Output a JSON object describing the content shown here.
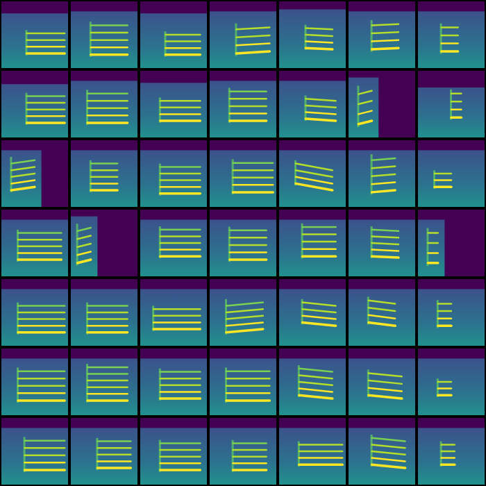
{
  "chart_data": {
    "type": "spectrogram_grid",
    "xlim": [
      0,
      1
    ],
    "ylim": [
      0,
      1
    ],
    "tick_labels": false,
    "panels": [
      [
        {
          "t": [
            0.38,
            0.95
          ],
          "base": [
            0.22,
            0.22
          ],
          "spacing": 0.1,
          "count": 4,
          "noise": [
            0,
            1,
            0.82
          ]
        },
        {
          "t": [
            0.3,
            0.85
          ],
          "base": [
            0.2,
            0.2
          ],
          "spacing": 0.11,
          "count": 5,
          "noise": [
            0,
            1,
            0.85
          ]
        },
        {
          "t": [
            0.38,
            0.9
          ],
          "base": [
            0.2,
            0.2
          ],
          "spacing": 0.1,
          "count": 4,
          "noise": [
            0,
            1,
            0.82
          ]
        },
        {
          "t": [
            0.4,
            0.9
          ],
          "base": [
            0.22,
            0.25
          ],
          "spacing": 0.12,
          "count": 4,
          "noise": [
            0,
            1,
            0.85
          ]
        },
        {
          "t": [
            0.4,
            0.8
          ],
          "base": [
            0.3,
            0.28
          ],
          "spacing": 0.1,
          "count": 4,
          "noise": [
            0,
            1,
            0.88
          ]
        },
        {
          "t": [
            0.35,
            0.75
          ],
          "base": [
            0.28,
            0.3
          ],
          "spacing": 0.12,
          "count": 4,
          "noise": [
            0,
            1,
            0.85
          ]
        },
        {
          "t": [
            0.35,
            0.6
          ],
          "base": [
            0.25,
            0.25
          ],
          "spacing": 0.12,
          "count": 4,
          "noise": [
            0,
            1,
            0.85
          ]
        }
      ],
      [
        {
          "t": [
            0.38,
            0.95
          ],
          "base": [
            0.22,
            0.22
          ],
          "spacing": 0.1,
          "count": 5,
          "noise": [
            0,
            1,
            0.8
          ]
        },
        {
          "t": [
            0.25,
            0.85
          ],
          "base": [
            0.22,
            0.22
          ],
          "spacing": 0.11,
          "count": 5,
          "noise": [
            0,
            1,
            0.85
          ]
        },
        {
          "t": [
            0.3,
            0.9
          ],
          "base": [
            0.25,
            0.25
          ],
          "spacing": 0.1,
          "count": 4,
          "noise": [
            0,
            1,
            0.82
          ]
        },
        {
          "t": [
            0.3,
            0.85
          ],
          "base": [
            0.25,
            0.25
          ],
          "spacing": 0.11,
          "count": 5,
          "noise": [
            0,
            1,
            0.85
          ]
        },
        {
          "t": [
            0.4,
            0.85
          ],
          "base": [
            0.28,
            0.25
          ],
          "spacing": 0.1,
          "count": 4,
          "noise": [
            0,
            1,
            0.85
          ]
        },
        {
          "t": [
            0.15,
            0.35
          ],
          "base": [
            0.2,
            0.25
          ],
          "spacing": 0.15,
          "count": 4,
          "noise": [
            0,
            0.45,
            0.9
          ]
        },
        {
          "t": [
            0.5,
            0.65
          ],
          "base": [
            0.3,
            0.3
          ],
          "spacing": 0.12,
          "count": 4,
          "noise": [
            0,
            1,
            0.75
          ]
        }
      ],
      [
        {
          "t": [
            0.15,
            0.5
          ],
          "base": [
            0.25,
            0.3
          ],
          "spacing": 0.1,
          "count": 5,
          "noise": [
            0,
            0.6,
            0.85
          ]
        },
        {
          "t": [
            0.3,
            0.7
          ],
          "base": [
            0.25,
            0.25
          ],
          "spacing": 0.1,
          "count": 5,
          "noise": [
            0,
            1,
            0.85
          ]
        },
        {
          "t": [
            0.3,
            0.9
          ],
          "base": [
            0.2,
            0.2
          ],
          "spacing": 0.1,
          "count": 5,
          "noise": [
            0,
            1,
            0.85
          ]
        },
        {
          "t": [
            0.35,
            0.95
          ],
          "base": [
            0.22,
            0.22
          ],
          "spacing": 0.11,
          "count": 5,
          "noise": [
            0,
            1,
            0.85
          ]
        },
        {
          "t": [
            0.25,
            0.8
          ],
          "base": [
            0.35,
            0.25
          ],
          "spacing": 0.1,
          "count": 4,
          "noise": [
            0,
            1,
            0.85
          ]
        },
        {
          "t": [
            0.35,
            0.7
          ],
          "base": [
            0.22,
            0.25
          ],
          "spacing": 0.12,
          "count": 5,
          "noise": [
            0,
            1,
            0.85
          ]
        },
        {
          "t": [
            0.25,
            0.5
          ],
          "base": [
            0.3,
            0.3
          ],
          "spacing": 0.1,
          "count": 3,
          "noise": [
            0,
            1,
            0.85
          ]
        }
      ],
      [
        {
          "t": [
            0.25,
            0.9
          ],
          "base": [
            0.25,
            0.25
          ],
          "spacing": 0.1,
          "count": 5,
          "noise": [
            0,
            1,
            0.85
          ]
        },
        {
          "t": [
            0.1,
            0.3
          ],
          "base": [
            0.2,
            0.25
          ],
          "spacing": 0.12,
          "count": 5,
          "noise": [
            0,
            0.4,
            0.9
          ]
        },
        {
          "t": [
            0.3,
            0.9
          ],
          "base": [
            0.3,
            0.3
          ],
          "spacing": 0.1,
          "count": 5,
          "noise": [
            0,
            1,
            0.85
          ]
        },
        {
          "t": [
            0.3,
            0.85
          ],
          "base": [
            0.25,
            0.25
          ],
          "spacing": 0.11,
          "count": 5,
          "noise": [
            0,
            1,
            0.85
          ]
        },
        {
          "t": [
            0.35,
            0.85
          ],
          "base": [
            0.3,
            0.3
          ],
          "spacing": 0.11,
          "count": 5,
          "noise": [
            0,
            1,
            0.85
          ]
        },
        {
          "t": [
            0.35,
            0.75
          ],
          "base": [
            0.3,
            0.28
          ],
          "spacing": 0.1,
          "count": 5,
          "noise": [
            0,
            1,
            0.85
          ]
        },
        {
          "t": [
            0.15,
            0.3
          ],
          "base": [
            0.2,
            0.2
          ],
          "spacing": 0.15,
          "count": 4,
          "noise": [
            0,
            0.4,
            0.85
          ]
        }
      ],
      [
        {
          "t": [
            0.25,
            0.95
          ],
          "base": [
            0.2,
            0.2
          ],
          "spacing": 0.1,
          "count": 5,
          "noise": [
            0,
            1,
            0.85
          ]
        },
        {
          "t": [
            0.25,
            0.85
          ],
          "base": [
            0.2,
            0.2
          ],
          "spacing": 0.1,
          "count": 5,
          "noise": [
            0,
            1,
            0.85
          ]
        },
        {
          "t": [
            0.2,
            0.9
          ],
          "base": [
            0.25,
            0.25
          ],
          "spacing": 0.1,
          "count": 4,
          "noise": [
            0,
            1,
            0.85
          ]
        },
        {
          "t": [
            0.25,
            0.8
          ],
          "base": [
            0.2,
            0.25
          ],
          "spacing": 0.1,
          "count": 5,
          "noise": [
            0,
            1,
            0.85
          ]
        },
        {
          "t": [
            0.35,
            0.85
          ],
          "base": [
            0.35,
            0.3
          ],
          "spacing": 0.1,
          "count": 4,
          "noise": [
            0,
            1,
            0.85
          ]
        },
        {
          "t": [
            0.3,
            0.7
          ],
          "base": [
            0.35,
            0.3
          ],
          "spacing": 0.11,
          "count": 4,
          "noise": [
            0,
            1,
            0.85
          ]
        },
        {
          "t": [
            0.3,
            0.5
          ],
          "base": [
            0.3,
            0.3
          ],
          "spacing": 0.11,
          "count": 4,
          "noise": [
            0,
            1,
            0.85
          ]
        }
      ],
      [
        {
          "t": [
            0.25,
            0.95
          ],
          "base": [
            0.22,
            0.22
          ],
          "spacing": 0.11,
          "count": 5,
          "noise": [
            0,
            1,
            0.85
          ]
        },
        {
          "t": [
            0.25,
            0.85
          ],
          "base": [
            0.22,
            0.22
          ],
          "spacing": 0.1,
          "count": 6,
          "noise": [
            0,
            1,
            0.85
          ]
        },
        {
          "t": [
            0.3,
            0.9
          ],
          "base": [
            0.25,
            0.25
          ],
          "spacing": 0.1,
          "count": 5,
          "noise": [
            0,
            1,
            0.85
          ]
        },
        {
          "t": [
            0.25,
            0.9
          ],
          "base": [
            0.22,
            0.22
          ],
          "spacing": 0.11,
          "count": 5,
          "noise": [
            0,
            1,
            0.85
          ]
        },
        {
          "t": [
            0.3,
            0.8
          ],
          "base": [
            0.3,
            0.25
          ],
          "spacing": 0.1,
          "count": 5,
          "noise": [
            0,
            1,
            0.85
          ]
        },
        {
          "t": [
            0.3,
            0.8
          ],
          "base": [
            0.3,
            0.25
          ],
          "spacing": 0.11,
          "count": 4,
          "noise": [
            0,
            1,
            0.85
          ]
        },
        {
          "t": [
            0.3,
            0.5
          ],
          "base": [
            0.3,
            0.3
          ],
          "spacing": 0.1,
          "count": 3,
          "noise": [
            0,
            1,
            0.85
          ]
        }
      ],
      [
        {
          "t": [
            0.35,
            0.95
          ],
          "base": [
            0.22,
            0.22
          ],
          "spacing": 0.11,
          "count": 5,
          "noise": [
            0,
            1,
            0.85
          ]
        },
        {
          "t": [
            0.4,
            0.9
          ],
          "base": [
            0.25,
            0.25
          ],
          "spacing": 0.1,
          "count": 5,
          "noise": [
            0,
            1,
            0.85
          ]
        },
        {
          "t": [
            0.3,
            0.9
          ],
          "base": [
            0.22,
            0.22
          ],
          "spacing": 0.1,
          "count": 5,
          "noise": [
            0,
            1,
            0.85
          ]
        },
        {
          "t": [
            0.35,
            0.85
          ],
          "base": [
            0.22,
            0.22
          ],
          "spacing": 0.1,
          "count": 5,
          "noise": [
            0,
            1,
            0.85
          ]
        },
        {
          "t": [
            0.3,
            0.95
          ],
          "base": [
            0.3,
            0.3
          ],
          "spacing": 0.1,
          "count": 4,
          "noise": [
            0,
            1,
            0.85
          ]
        },
        {
          "t": [
            0.35,
            0.85
          ],
          "base": [
            0.3,
            0.25
          ],
          "spacing": 0.1,
          "count": 5,
          "noise": [
            0,
            1,
            0.85
          ]
        },
        {
          "t": [
            0.35,
            0.55
          ],
          "base": [
            0.3,
            0.3
          ],
          "spacing": 0.1,
          "count": 4,
          "noise": [
            0,
            1,
            0.85
          ]
        }
      ]
    ]
  }
}
